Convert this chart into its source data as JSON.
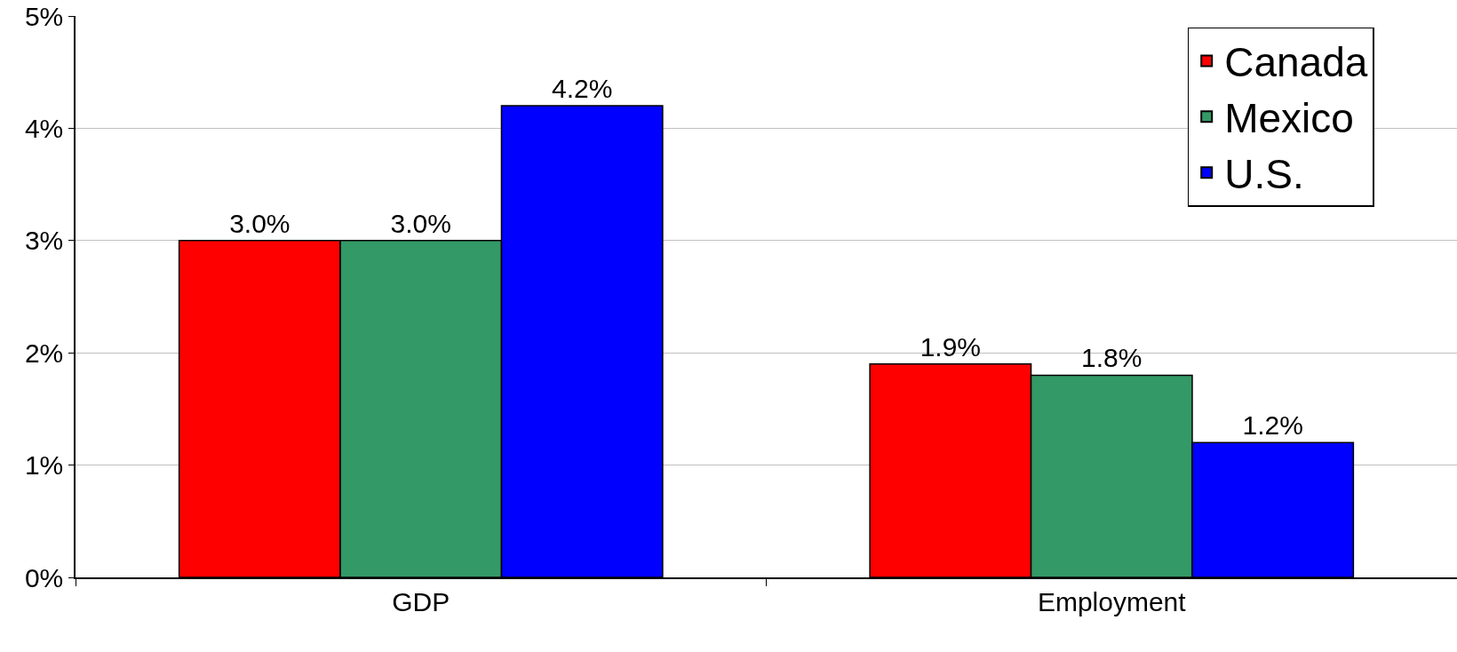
{
  "chart_data": {
    "type": "bar",
    "categories": [
      "GDP",
      "Employment"
    ],
    "series": [
      {
        "name": "Canada",
        "color": "#ff0000",
        "values": [
          3.0,
          1.9
        ],
        "value_labels": [
          "3.0%",
          "1.9%"
        ]
      },
      {
        "name": "Mexico",
        "color": "#339966",
        "values": [
          3.0,
          1.8
        ],
        "value_labels": [
          "3.0%",
          "1.8%"
        ]
      },
      {
        "name": "U.S.",
        "color": "#0000ff",
        "values": [
          4.2,
          1.2
        ],
        "value_labels": [
          "4.2%",
          "1.2%"
        ]
      }
    ],
    "ylim": [
      0,
      5
    ],
    "yticks": [
      {
        "value": 0,
        "label": "0%"
      },
      {
        "value": 1,
        "label": "1%"
      },
      {
        "value": 2,
        "label": "2%"
      },
      {
        "value": 3,
        "label": "3%"
      },
      {
        "value": 4,
        "label": "4%"
      },
      {
        "value": 5,
        "label": "5%"
      }
    ],
    "grid": "y",
    "legend": "top right"
  }
}
